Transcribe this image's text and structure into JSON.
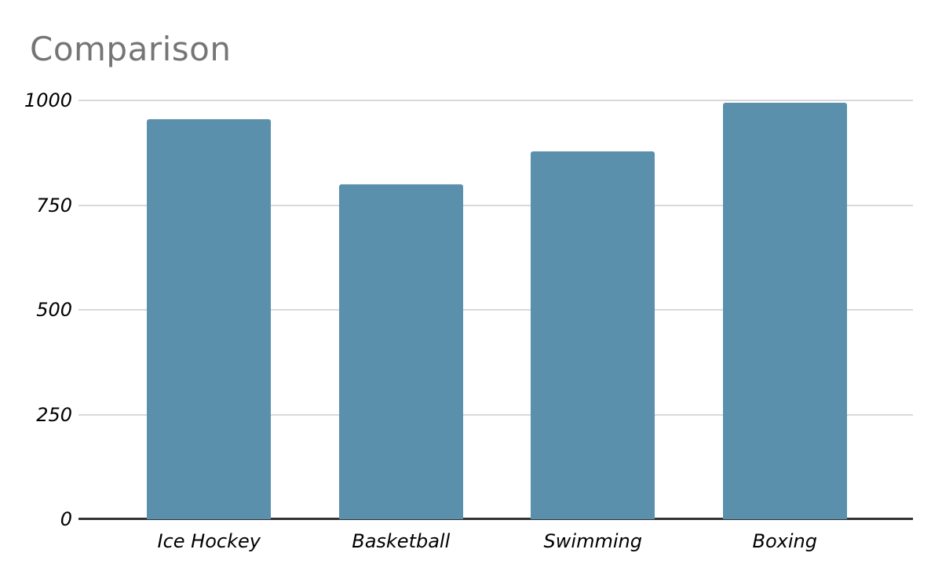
{
  "title": "Comparison",
  "colors": {
    "background": "#ffffff",
    "bar": "#5a90ac",
    "grid": "#d9d9d9",
    "axis": "#333333",
    "title_text": "#757575",
    "label_text": "#000000"
  },
  "chart_data": {
    "type": "bar",
    "title": "Comparison",
    "categories": [
      "Ice Hockey",
      "Basketball",
      "Swimming",
      "Boxing"
    ],
    "values": [
      955,
      800,
      878,
      995
    ],
    "xlabel": "",
    "ylabel": "",
    "ylim": [
      0,
      1000
    ],
    "yticks": [
      0,
      250,
      500,
      750,
      1000
    ],
    "grid": true,
    "legend": "none",
    "bar_color": "#5a90ac"
  }
}
